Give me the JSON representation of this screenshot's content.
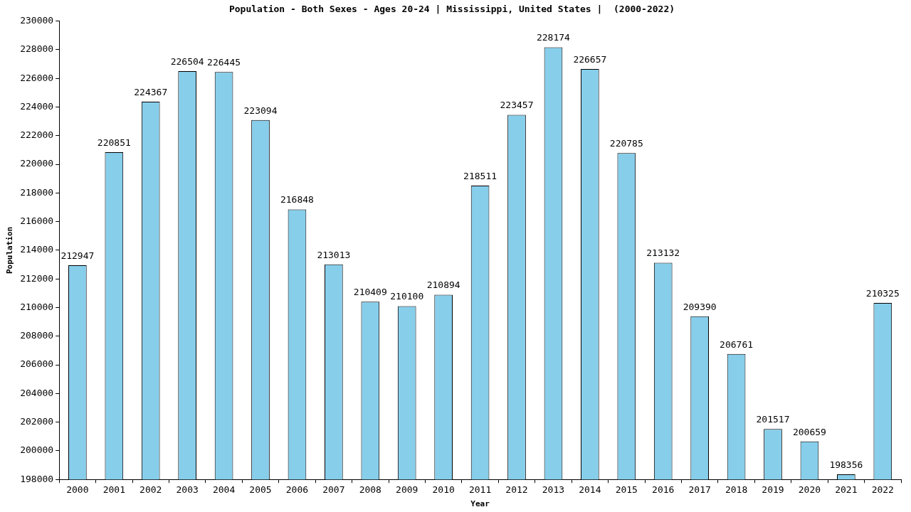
{
  "chart_data": {
    "type": "bar",
    "title": "Population - Both Sexes - Ages 20-24 | Mississippi, United States |  (2000-2022)",
    "x_label": "Year",
    "y_label": "Population",
    "categories": [
      "2000",
      "2001",
      "2002",
      "2003",
      "2004",
      "2005",
      "2006",
      "2007",
      "2008",
      "2009",
      "2010",
      "2011",
      "2012",
      "2013",
      "2014",
      "2015",
      "2016",
      "2017",
      "2018",
      "2019",
      "2020",
      "2021",
      "2022"
    ],
    "values": [
      212947,
      220851,
      224367,
      226504,
      226445,
      223094,
      216848,
      213013,
      210409,
      210100,
      210894,
      218511,
      223457,
      228174,
      226657,
      220785,
      213132,
      209390,
      206761,
      201517,
      200659,
      198356,
      210325
    ],
    "color": "#87ceeb",
    "ylim": [
      198000,
      230000
    ],
    "yticks": [
      198000,
      200000,
      202000,
      204000,
      206000,
      208000,
      210000,
      212000,
      214000,
      216000,
      218000,
      220000,
      222000,
      224000,
      226000,
      228000,
      230000
    ],
    "grid": false,
    "data_labels": true
  }
}
